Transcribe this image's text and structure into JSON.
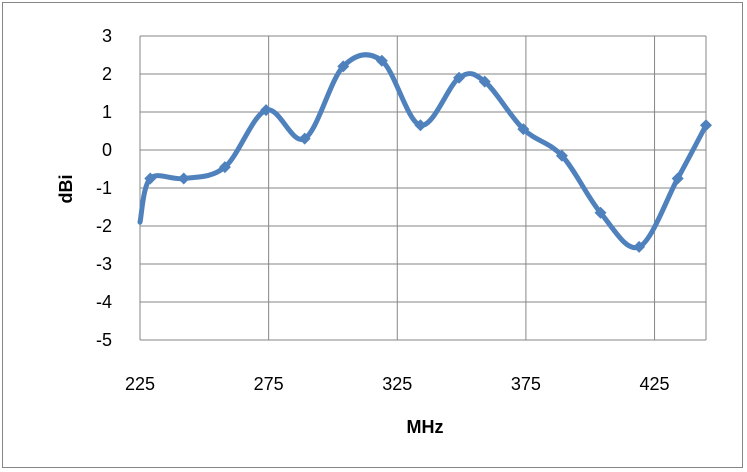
{
  "chart_data": {
    "type": "line",
    "title": "",
    "xlabel": "MHz",
    "ylabel": "dBi",
    "xlim": [
      225,
      445
    ],
    "ylim": [
      -5,
      3
    ],
    "x_ticks": [
      225,
      275,
      325,
      375,
      425
    ],
    "y_ticks": [
      3,
      2,
      1,
      0,
      -1,
      -2,
      -3,
      -4,
      -5
    ],
    "grid": true,
    "legend": "none",
    "smooth": true,
    "series": [
      {
        "color": "#4f81bd",
        "x": [
          225,
          229,
          242,
          258,
          274,
          289,
          304,
          319,
          334,
          349,
          359,
          374,
          389,
          404,
          419,
          434,
          445
        ],
        "y": [
          -1.9,
          -0.75,
          -0.75,
          -0.45,
          1.05,
          0.3,
          2.2,
          2.35,
          0.65,
          1.9,
          1.8,
          0.55,
          -0.15,
          -1.65,
          -2.55,
          -0.75,
          0.65
        ]
      }
    ]
  }
}
